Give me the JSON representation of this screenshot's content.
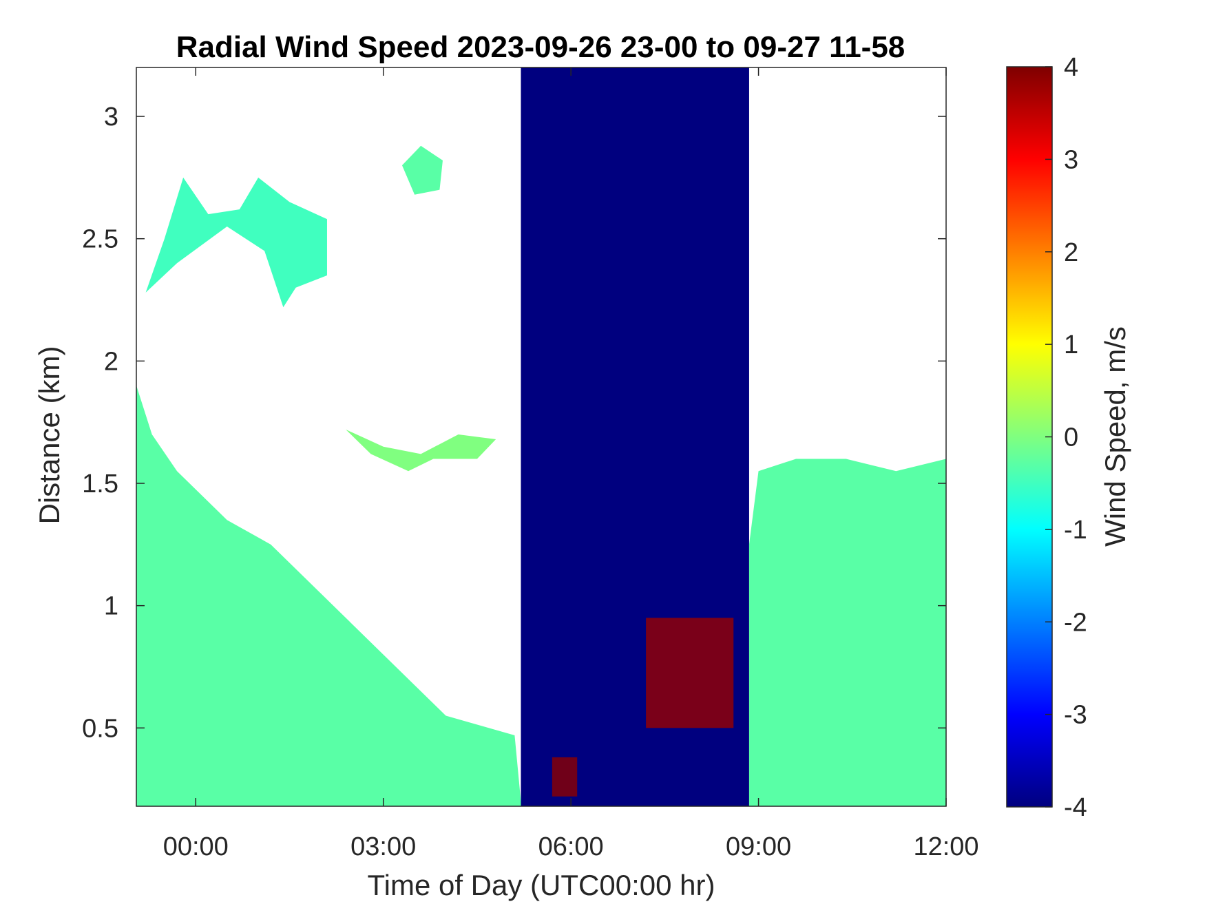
{
  "chart_data": {
    "type": "heatmap",
    "title": "Radial Wind Speed 2023-09-26 23-00 to 09-27 11-58",
    "xlabel": "Time of Day (UTC00:00 hr)",
    "ylabel": "Distance (km)",
    "colorbar_label": "Wind Speed, m/s",
    "x_range_hours": [
      -0.95,
      12.0
    ],
    "ylim": [
      0.18,
      3.2
    ],
    "x_ticks": [
      {
        "value": 0,
        "label": "00:00"
      },
      {
        "value": 3,
        "label": "03:00"
      },
      {
        "value": 6,
        "label": "06:00"
      },
      {
        "value": 9,
        "label": "09:00"
      },
      {
        "value": 12,
        "label": "12:00"
      }
    ],
    "y_ticks": [
      {
        "value": 0.5,
        "label": "0.5"
      },
      {
        "value": 1.0,
        "label": "1"
      },
      {
        "value": 1.5,
        "label": "1.5"
      },
      {
        "value": 2.0,
        "label": "2"
      },
      {
        "value": 2.5,
        "label": "2.5"
      },
      {
        "value": 3.0,
        "label": "3"
      }
    ],
    "colorbar": {
      "min": -4,
      "max": 4,
      "colormap": "jet",
      "ticks": [
        {
          "value": 4,
          "label": "4"
        },
        {
          "value": 3,
          "label": "3"
        },
        {
          "value": 2,
          "label": "2"
        },
        {
          "value": 1,
          "label": "1"
        },
        {
          "value": 0,
          "label": "0"
        },
        {
          "value": -1,
          "label": "-1"
        },
        {
          "value": -2,
          "label": "-2"
        },
        {
          "value": -3,
          "label": "-3"
        },
        {
          "value": -4,
          "label": "-4"
        }
      ]
    },
    "regions": [
      {
        "kind": "boundary_layer",
        "value": -0.3,
        "boundary": [
          [
            -0.95,
            1.9
          ],
          [
            -0.7,
            1.7
          ],
          [
            -0.3,
            1.55
          ],
          [
            0.5,
            1.35
          ],
          [
            1.2,
            1.25
          ],
          [
            2.0,
            1.05
          ],
          [
            3.0,
            0.8
          ],
          [
            4.0,
            0.55
          ],
          [
            5.1,
            0.47
          ],
          [
            5.2,
            0.2
          ]
        ]
      },
      {
        "kind": "cloud_layer",
        "value": -0.5,
        "outline": [
          [
            -0.8,
            2.28
          ],
          [
            -0.5,
            2.5
          ],
          [
            -0.2,
            2.75
          ],
          [
            0.2,
            2.6
          ],
          [
            0.7,
            2.62
          ],
          [
            1.0,
            2.75
          ],
          [
            1.5,
            2.65
          ],
          [
            2.1,
            2.58
          ],
          [
            2.1,
            2.35
          ],
          [
            1.6,
            2.3
          ],
          [
            1.4,
            2.22
          ],
          [
            1.1,
            2.45
          ],
          [
            0.5,
            2.55
          ],
          [
            -0.3,
            2.4
          ],
          [
            -0.8,
            2.28
          ]
        ]
      },
      {
        "kind": "cloud_patch",
        "value": -0.3,
        "outline": [
          [
            3.3,
            2.8
          ],
          [
            3.6,
            2.88
          ],
          [
            3.95,
            2.82
          ],
          [
            3.9,
            2.7
          ],
          [
            3.5,
            2.68
          ],
          [
            3.3,
            2.8
          ]
        ]
      },
      {
        "kind": "aerosol_band",
        "value": 0.0,
        "outline": [
          [
            2.4,
            1.72
          ],
          [
            3.0,
            1.65
          ],
          [
            3.6,
            1.62
          ],
          [
            4.2,
            1.7
          ],
          [
            4.8,
            1.68
          ],
          [
            4.5,
            1.6
          ],
          [
            3.8,
            1.6
          ],
          [
            3.4,
            1.55
          ],
          [
            2.8,
            1.62
          ],
          [
            2.4,
            1.72
          ]
        ]
      },
      {
        "kind": "saturated_block",
        "value": -4,
        "x_range": [
          5.2,
          8.85
        ]
      },
      {
        "kind": "boundary_layer",
        "value": -0.3,
        "boundary": [
          [
            8.85,
            1.25
          ],
          [
            9.0,
            1.55
          ],
          [
            9.6,
            1.6
          ],
          [
            10.4,
            1.6
          ],
          [
            11.2,
            1.55
          ],
          [
            12.0,
            1.6
          ],
          [
            12.0,
            0.2
          ]
        ]
      }
    ],
    "positive_patches": [
      {
        "x_range": [
          5.7,
          6.1
        ],
        "y_range": [
          0.22,
          0.38
        ],
        "value": 3.9
      },
      {
        "x_range": [
          7.2,
          8.6
        ],
        "y_range": [
          0.5,
          0.95
        ],
        "value": 3.8
      }
    ]
  }
}
